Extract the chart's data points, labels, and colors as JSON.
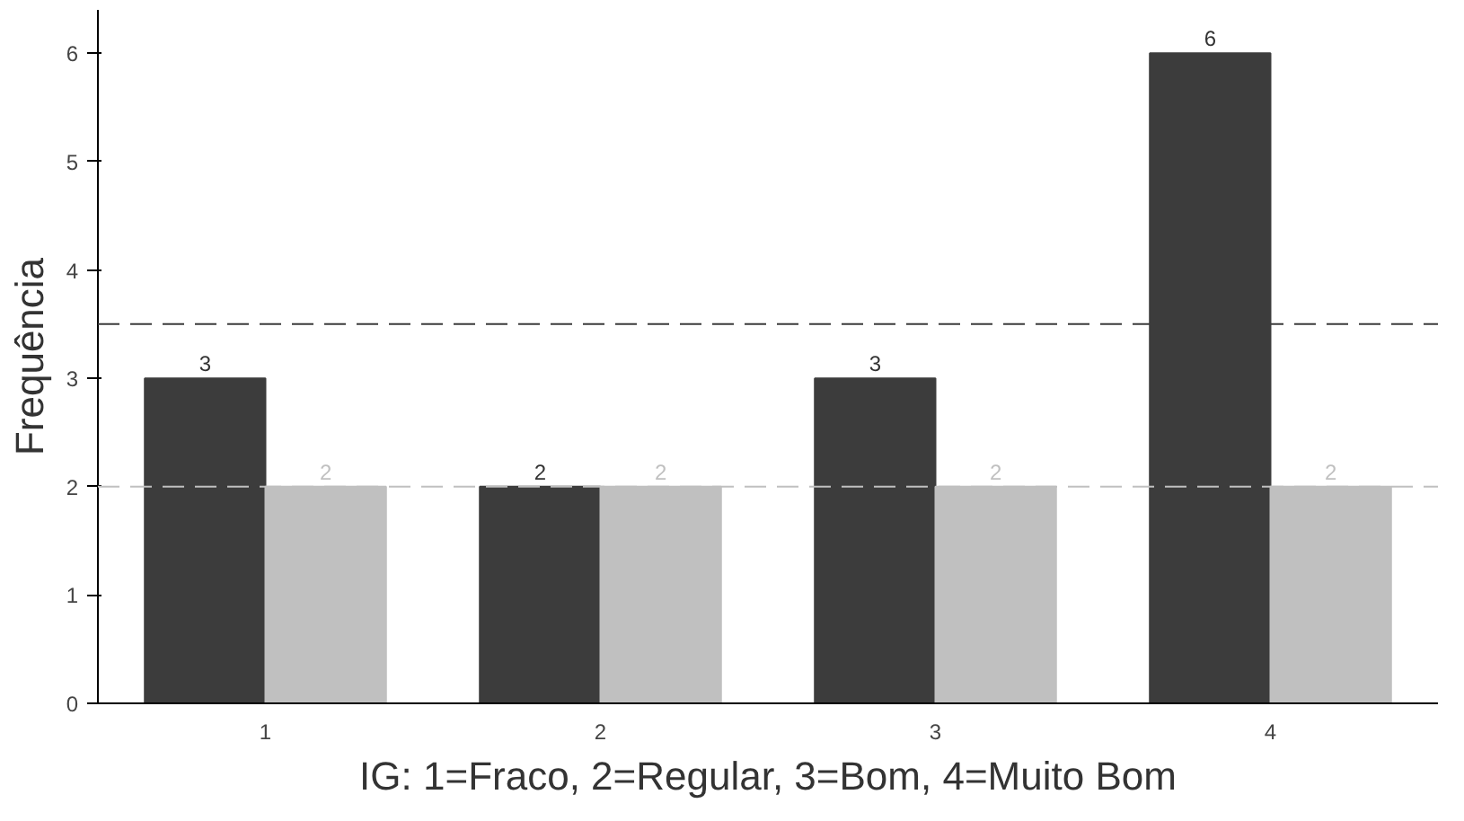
{
  "chart_data": {
    "type": "bar",
    "xlabel": "IG: 1=Fraco, 2=Regular, 3=Bom, 4=Muito Bom",
    "ylabel": "Frequência",
    "categories": [
      "1",
      "2",
      "3",
      "4"
    ],
    "series": [
      {
        "color": "#3c3c3c",
        "values": [
          3,
          2,
          3,
          6
        ]
      },
      {
        "color": "#c0c0c0",
        "values": [
          2,
          2,
          2,
          2
        ]
      }
    ],
    "ylim": [
      0,
      6.4
    ],
    "yticks": [
      0,
      1,
      2,
      3,
      4,
      5,
      6
    ],
    "grid": false,
    "data_labels": true,
    "ref_lines": [
      {
        "axis": "y",
        "value": 3.5,
        "color": "#3c3c3c",
        "line_style": "dashed"
      },
      {
        "axis": "y",
        "value": 2,
        "color": "#c0c0c0",
        "line_style": "dashed"
      }
    ]
  }
}
